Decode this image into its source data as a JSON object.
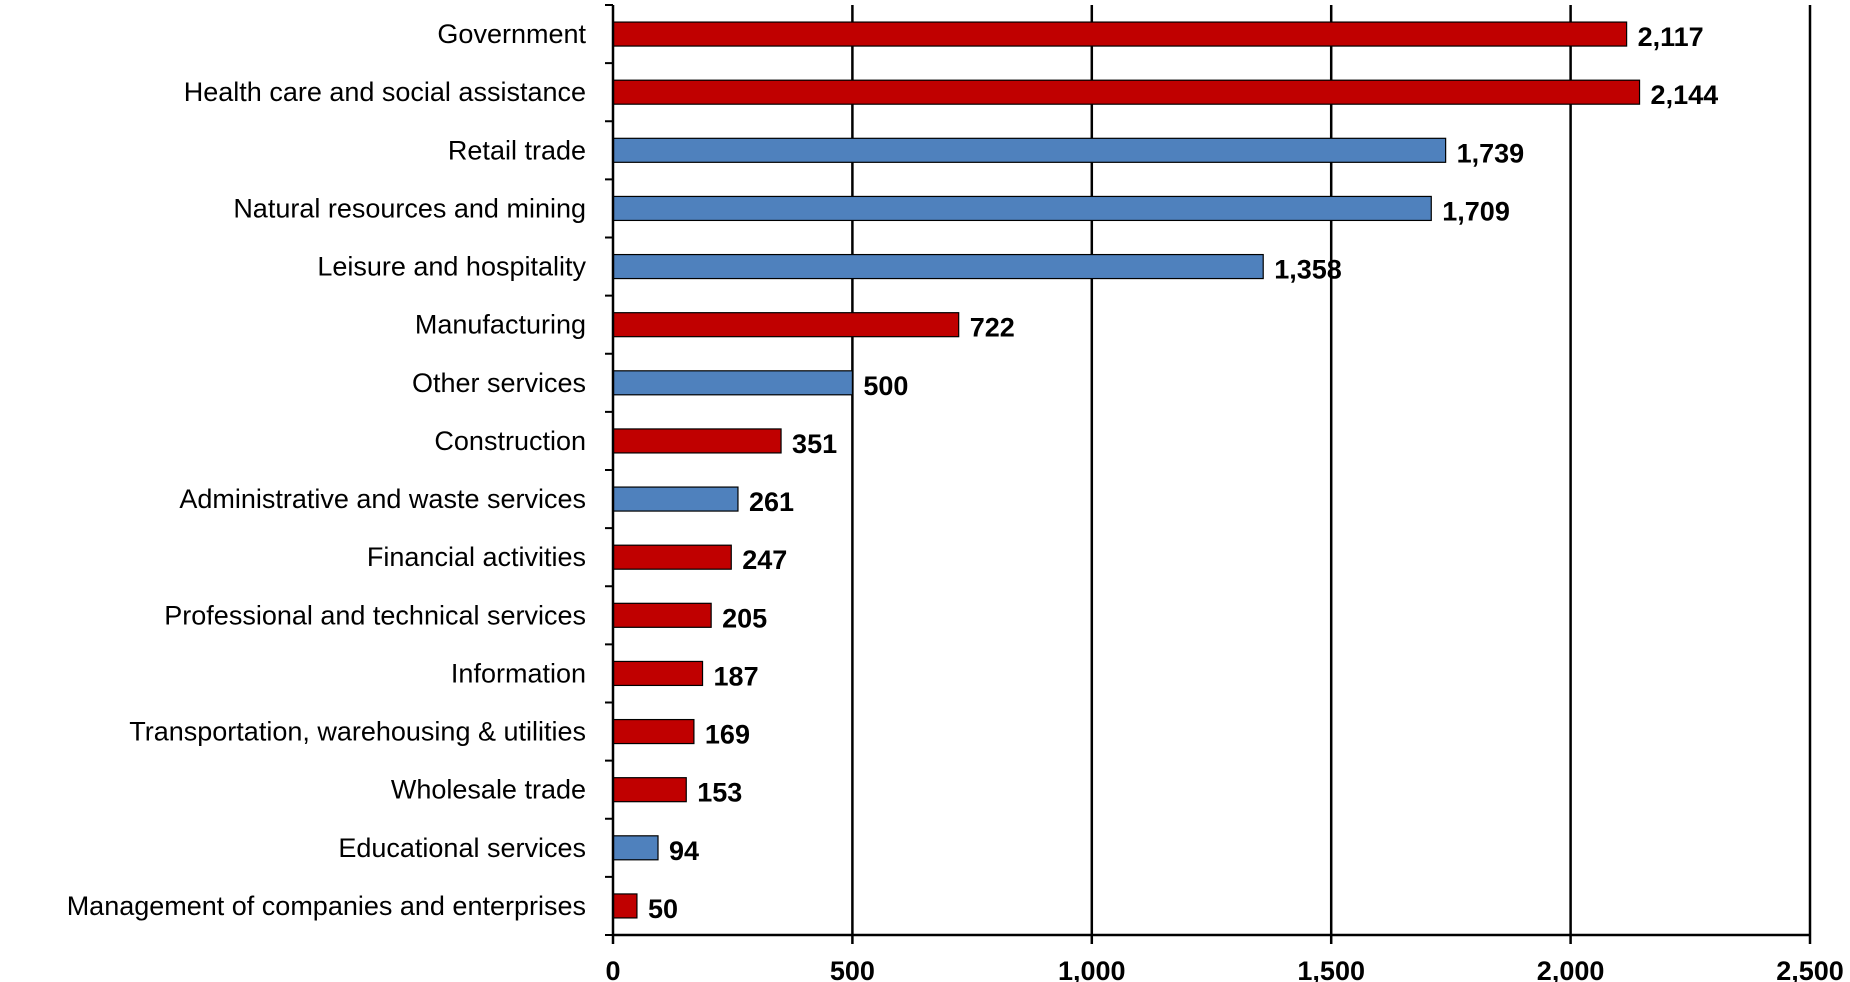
{
  "chart_data": {
    "type": "bar",
    "orientation": "horizontal",
    "categories": [
      "Government",
      "Health care and social assistance",
      "Retail trade",
      "Natural resources and mining",
      "Leisure and hospitality",
      "Manufacturing",
      "Other services",
      "Construction",
      "Administrative and waste services",
      "Financial activities",
      "Professional and technical services",
      "Information",
      "Transportation, warehousing & utilities",
      "Wholesale trade",
      "Educational services",
      "Management of companies and enterprises"
    ],
    "values": [
      2117,
      2144,
      1739,
      1709,
      1358,
      722,
      500,
      351,
      261,
      247,
      205,
      187,
      169,
      153,
      94,
      50
    ],
    "value_labels": [
      "2,117",
      "2,144",
      "1,739",
      "1,709",
      "1,358",
      "722",
      "500",
      "351",
      "261",
      "247",
      "205",
      "187",
      "169",
      "153",
      "94",
      "50"
    ],
    "bar_colors": [
      "#c00000",
      "#c00000",
      "#4f81bd",
      "#4f81bd",
      "#4f81bd",
      "#c00000",
      "#4f81bd",
      "#c00000",
      "#4f81bd",
      "#c00000",
      "#c00000",
      "#c00000",
      "#c00000",
      "#c00000",
      "#4f81bd",
      "#c00000"
    ],
    "xlim": [
      0,
      2500
    ],
    "xticks": [
      0,
      500,
      1000,
      1500,
      2000,
      2500
    ],
    "xtick_labels": [
      "0",
      "500",
      "1,000",
      "1,500",
      "2,000",
      "2,500"
    ],
    "grid": "vertical",
    "legend": "none",
    "title": "",
    "xlabel": "",
    "ylabel": ""
  }
}
